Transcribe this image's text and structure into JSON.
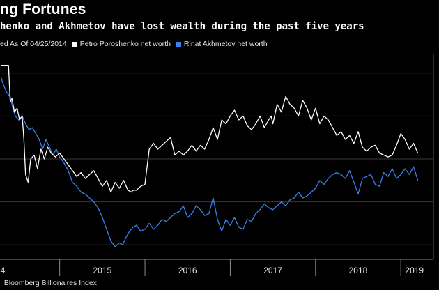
{
  "chart_data": {
    "type": "line",
    "title": "ng Fortunes",
    "subtitle": "henko and Akhmetov have lost wealth during the past five years",
    "legend_prefix": "ed As Of 04/25/2014",
    "source": "Bloomberg Billionaires Index",
    "x_ticks": [
      {
        "label": "4",
        "t": 2014.32
      },
      {
        "label": "2015",
        "t": 2015.0
      },
      {
        "label": "2016",
        "t": 2016.0
      },
      {
        "label": "2017",
        "t": 2017.0
      },
      {
        "label": "2018",
        "t": 2018.0
      },
      {
        "label": "2019",
        "t": 2019.0
      }
    ],
    "x_range": [
      2014.3,
      2019.35
    ],
    "y_range": [
      0,
      1
    ],
    "gridlines": [
      0.06,
      0.28,
      0.5,
      0.72,
      0.94
    ],
    "series": [
      {
        "name": "Petro Poroshenko net worth",
        "color": "#ffffff",
        "x": [
          2014.31,
          2014.36,
          2014.4,
          2014.42,
          2014.44,
          2014.47,
          2014.5,
          2014.53,
          2014.56,
          2014.58,
          2014.6,
          2014.63,
          2014.66,
          2014.7,
          2014.74,
          2014.78,
          2014.82,
          2014.86,
          2014.9,
          2014.95,
          2015.0,
          2015.05,
          2015.1,
          2015.15,
          2015.2,
          2015.25,
          2015.3,
          2015.35,
          2015.4,
          2015.45,
          2015.5,
          2015.55,
          2015.6,
          2015.65,
          2015.7,
          2015.75,
          2015.8,
          2015.84,
          2015.86,
          2015.9,
          2015.95,
          2016.0,
          2016.05,
          2016.1,
          2016.15,
          2016.2,
          2016.25,
          2016.3,
          2016.35,
          2016.4,
          2016.45,
          2016.5,
          2016.55,
          2016.6,
          2016.65,
          2016.7,
          2016.75,
          2016.8,
          2016.85,
          2016.9,
          2016.95,
          2017.0,
          2017.05,
          2017.1,
          2017.15,
          2017.2,
          2017.25,
          2017.3,
          2017.35,
          2017.4,
          2017.45,
          2017.48,
          2017.5,
          2017.55,
          2017.6,
          2017.65,
          2017.7,
          2017.75,
          2017.8,
          2017.85,
          2017.9,
          2017.95,
          2018.0,
          2018.05,
          2018.1,
          2018.15,
          2018.2,
          2018.25,
          2018.3,
          2018.35,
          2018.4,
          2018.45,
          2018.5,
          2018.55,
          2018.6,
          2018.65,
          2018.7,
          2018.75,
          2018.8,
          2018.85,
          2018.9,
          2018.95,
          2019.0,
          2019.05,
          2019.1,
          2019.15,
          2019.2
        ],
        "y": [
          0.98,
          0.98,
          0.98,
          0.79,
          0.81,
          0.74,
          0.76,
          0.7,
          0.72,
          0.6,
          0.42,
          0.38,
          0.5,
          0.52,
          0.45,
          0.55,
          0.5,
          0.56,
          0.53,
          0.51,
          0.53,
          0.5,
          0.47,
          0.44,
          0.41,
          0.43,
          0.4,
          0.42,
          0.44,
          0.4,
          0.36,
          0.39,
          0.33,
          0.38,
          0.35,
          0.39,
          0.34,
          0.33,
          0.34,
          0.34,
          0.36,
          0.37,
          0.55,
          0.58,
          0.55,
          0.57,
          0.59,
          0.61,
          0.52,
          0.54,
          0.52,
          0.54,
          0.57,
          0.54,
          0.57,
          0.55,
          0.6,
          0.66,
          0.6,
          0.7,
          0.68,
          0.72,
          0.75,
          0.7,
          0.72,
          0.67,
          0.65,
          0.68,
          0.72,
          0.66,
          0.7,
          0.72,
          0.68,
          0.78,
          0.74,
          0.82,
          0.78,
          0.76,
          0.72,
          0.8,
          0.76,
          0.7,
          0.76,
          0.68,
          0.72,
          0.7,
          0.66,
          0.62,
          0.64,
          0.6,
          0.62,
          0.58,
          0.64,
          0.56,
          0.54,
          0.56,
          0.57,
          0.53,
          0.52,
          0.51,
          0.52,
          0.57,
          0.63,
          0.6,
          0.55,
          0.58,
          0.53
        ]
      },
      {
        "name": "Rinat Akhmetov net worth",
        "color": "#3b82e8",
        "x": [
          2014.31,
          2014.34,
          2014.38,
          2014.42,
          2014.45,
          2014.48,
          2014.52,
          2014.56,
          2014.6,
          2014.64,
          2014.68,
          2014.72,
          2014.76,
          2014.8,
          2014.84,
          2014.88,
          2014.92,
          2014.96,
          2015.0,
          2015.05,
          2015.1,
          2015.15,
          2015.2,
          2015.25,
          2015.3,
          2015.35,
          2015.4,
          2015.45,
          2015.5,
          2015.55,
          2015.6,
          2015.65,
          2015.7,
          2015.74,
          2015.78,
          2015.82,
          2015.86,
          2015.9,
          2015.95,
          2016.0,
          2016.05,
          2016.1,
          2016.15,
          2016.2,
          2016.25,
          2016.3,
          2016.35,
          2016.4,
          2016.45,
          2016.5,
          2016.55,
          2016.6,
          2016.65,
          2016.7,
          2016.75,
          2016.8,
          2016.85,
          2016.9,
          2016.95,
          2017.0,
          2017.05,
          2017.1,
          2017.15,
          2017.2,
          2017.25,
          2017.3,
          2017.35,
          2017.4,
          2017.45,
          2017.5,
          2017.55,
          2017.6,
          2017.65,
          2017.7,
          2017.75,
          2017.8,
          2017.85,
          2017.9,
          2017.95,
          2018.0,
          2018.05,
          2018.1,
          2018.15,
          2018.2,
          2018.25,
          2018.3,
          2018.35,
          2018.4,
          2018.45,
          2018.5,
          2018.55,
          2018.6,
          2018.65,
          2018.7,
          2018.75,
          2018.8,
          2018.85,
          2018.9,
          2018.95,
          2019.0,
          2019.05,
          2019.1,
          2019.15,
          2019.2
        ],
        "y": [
          0.92,
          0.88,
          0.84,
          0.82,
          0.76,
          0.72,
          0.7,
          0.72,
          0.68,
          0.65,
          0.66,
          0.63,
          0.6,
          0.55,
          0.6,
          0.56,
          0.52,
          0.55,
          0.51,
          0.48,
          0.44,
          0.38,
          0.36,
          0.33,
          0.32,
          0.3,
          0.28,
          0.25,
          0.2,
          0.14,
          0.08,
          0.05,
          0.07,
          0.06,
          0.1,
          0.13,
          0.15,
          0.16,
          0.13,
          0.14,
          0.17,
          0.14,
          0.16,
          0.19,
          0.18,
          0.2,
          0.22,
          0.23,
          0.26,
          0.2,
          0.22,
          0.26,
          0.24,
          0.21,
          0.22,
          0.3,
          0.19,
          0.13,
          0.19,
          0.16,
          0.2,
          0.15,
          0.14,
          0.19,
          0.18,
          0.22,
          0.24,
          0.27,
          0.25,
          0.24,
          0.26,
          0.28,
          0.26,
          0.29,
          0.3,
          0.33,
          0.3,
          0.31,
          0.33,
          0.35,
          0.39,
          0.37,
          0.4,
          0.42,
          0.43,
          0.42,
          0.4,
          0.44,
          0.38,
          0.32,
          0.4,
          0.41,
          0.42,
          0.37,
          0.36,
          0.43,
          0.41,
          0.45,
          0.4,
          0.42,
          0.45,
          0.42,
          0.46,
          0.39
        ]
      }
    ]
  }
}
